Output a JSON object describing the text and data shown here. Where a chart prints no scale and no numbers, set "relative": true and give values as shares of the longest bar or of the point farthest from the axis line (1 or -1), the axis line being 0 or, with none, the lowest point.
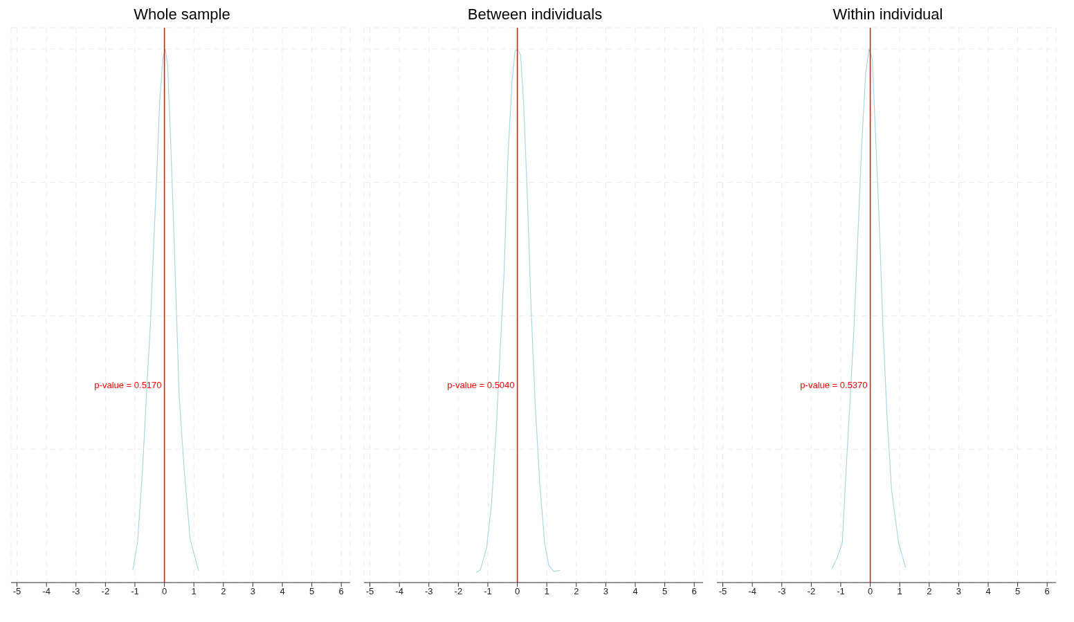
{
  "chart_data": [
    {
      "type": "line",
      "title": "Whole sample",
      "relative": true,
      "xlim": [
        -5.2,
        6.3
      ],
      "xticks": [
        -5,
        -4,
        -3,
        -2,
        -1,
        0,
        1,
        2,
        3,
        4,
        5,
        6
      ],
      "grid": true,
      "series": [
        {
          "color": "#a8d8e6",
          "x": [
            -1.07,
            -0.91,
            -0.74,
            -0.61,
            -0.47,
            -0.37,
            -0.26,
            -0.16,
            -0.05,
            0.03,
            0.11,
            0.21,
            0.34,
            0.5,
            0.67,
            0.87,
            1.16
          ],
          "values": [
            0.024,
            0.076,
            0.213,
            0.351,
            0.488,
            0.625,
            0.763,
            0.9,
            0.983,
            1,
            0.969,
            0.832,
            0.625,
            0.351,
            0.213,
            0.082,
            0.022
          ]
        }
      ],
      "ref_lines": [
        {
          "axis": "x",
          "value": 0,
          "color": "#ff0000"
        }
      ],
      "annotations": [
        "p-value = 0.5170"
      ]
    },
    {
      "type": "line",
      "title": "Between individuals",
      "relative": true,
      "xlim": [
        -5.2,
        6.3
      ],
      "xticks": [
        -5,
        -4,
        -3,
        -2,
        -1,
        0,
        1,
        2,
        3,
        4,
        5,
        6
      ],
      "grid": true,
      "series": [
        {
          "color": "#a8d8e6",
          "x": [
            -1.39,
            -1.26,
            -1.04,
            -0.87,
            -0.71,
            -0.58,
            -0.45,
            -0.32,
            -0.18,
            -0.08,
            0,
            0.11,
            0.21,
            0.34,
            0.47,
            0.61,
            0.76,
            0.93,
            1.07,
            1.24,
            1.46
          ],
          "values": [
            0.019,
            0.023,
            0.065,
            0.151,
            0.294,
            0.437,
            0.581,
            0.796,
            0.939,
            0.996,
            1,
            0.989,
            0.903,
            0.724,
            0.509,
            0.33,
            0.186,
            0.072,
            0.032,
            0.021,
            0.023
          ]
        }
      ],
      "ref_lines": [
        {
          "axis": "x",
          "value": 0,
          "color": "#ff0000"
        }
      ],
      "annotations": [
        "p-value = 0.5040"
      ]
    },
    {
      "type": "line",
      "title": "Within individual",
      "relative": true,
      "xlim": [
        -5.2,
        6.3
      ],
      "xticks": [
        -5,
        -4,
        -3,
        -2,
        -1,
        0,
        1,
        2,
        3,
        4,
        5,
        6
      ],
      "grid": true,
      "series": [
        {
          "color": "#a8d8e6",
          "x": [
            -1.3,
            -1.12,
            -0.95,
            -0.82,
            -0.68,
            -0.55,
            -0.42,
            -0.29,
            -0.16,
            -0.04,
            0.07,
            0.17,
            0.3,
            0.43,
            0.57,
            0.72,
            0.96,
            1.2
          ],
          "values": [
            0.026,
            0.047,
            0.074,
            0.209,
            0.345,
            0.48,
            0.649,
            0.818,
            0.953,
            1,
            0.98,
            0.851,
            0.682,
            0.48,
            0.311,
            0.176,
            0.074,
            0.028
          ]
        }
      ],
      "ref_lines": [
        {
          "axis": "x",
          "value": 0,
          "color": "#ff0000"
        }
      ],
      "annotations": [
        "p-value = 0.5370"
      ]
    }
  ]
}
